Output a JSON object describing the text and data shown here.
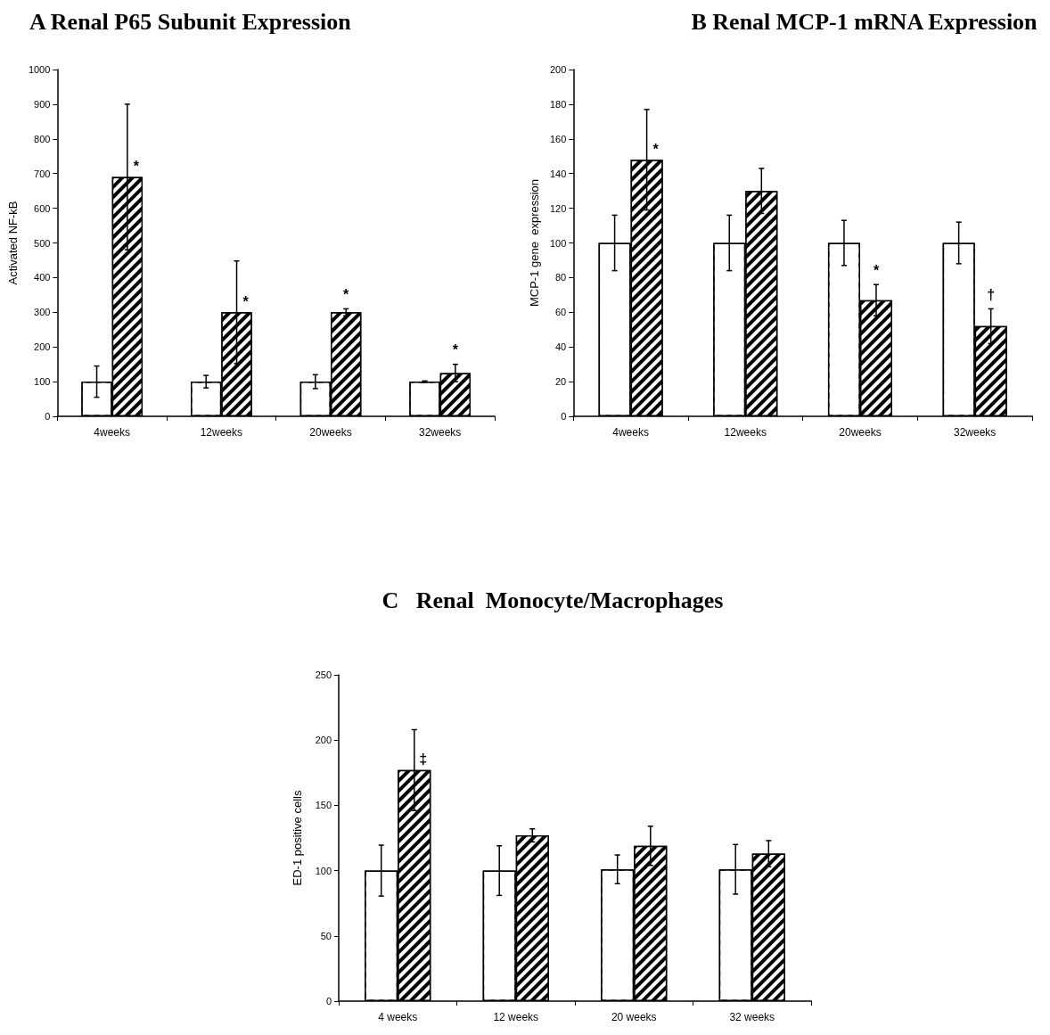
{
  "chart_data": [
    {
      "type": "bar",
      "title": "A Renal P65 Subunit Expression",
      "ylabel": "Activated NF-kB",
      "categories": [
        "4weeks",
        "12weeks",
        "20weeks",
        "32weeks"
      ],
      "series": [
        {
          "color": "#ffffff",
          "values": [
            100,
            100,
            100,
            100
          ],
          "errors": [
            45,
            18,
            20,
            2
          ]
        },
        {
          "color": "#000000",
          "values": [
            690,
            300,
            300,
            125
          ],
          "errors": [
            210,
            148,
            10,
            25
          ],
          "value_labels": [
            "*",
            "*",
            "*",
            "*"
          ]
        }
      ],
      "ylim": [
        0,
        1000
      ],
      "yticks": [
        0,
        100,
        200,
        300,
        400,
        500,
        600,
        700,
        800,
        900,
        1000
      ]
    },
    {
      "type": "bar",
      "title": "B Renal MCP-1 mRNA Expression",
      "ylabel": "MCP-1 gene  expression",
      "categories": [
        "4weeks",
        "12weeks",
        "20weeks",
        "32weeks"
      ],
      "series": [
        {
          "color": "#ffffff",
          "values": [
            100,
            100,
            100,
            100
          ],
          "errors": [
            16,
            16,
            13,
            12
          ]
        },
        {
          "color": "#000000",
          "values": [
            148,
            130,
            67,
            52
          ],
          "errors": [
            29,
            13,
            9,
            10
          ],
          "value_labels": [
            "*",
            null,
            "*",
            "†"
          ]
        }
      ],
      "ylim": [
        0,
        200
      ],
      "yticks": [
        0,
        20,
        40,
        60,
        80,
        100,
        120,
        140,
        160,
        180,
        200
      ]
    },
    {
      "type": "bar",
      "title": "C   Renal  Monocyte/Macrophages",
      "ylabel": "ED-1 positive cells",
      "categories": [
        "4 weeks",
        "12 weeks",
        "20 weeks",
        "32 weeks"
      ],
      "series": [
        {
          "color": "#ffffff",
          "values": [
            100,
            100,
            101,
            101
          ],
          "errors": [
            19.5,
            19,
            11,
            19
          ]
        },
        {
          "color": "#000000",
          "values": [
            177,
            127,
            119,
            113
          ],
          "errors": [
            31,
            5,
            15,
            10
          ],
          "value_labels": [
            "‡",
            null,
            null,
            null
          ]
        }
      ],
      "ylim": [
        0,
        250
      ],
      "yticks": [
        0,
        50,
        100,
        150,
        200,
        250
      ]
    }
  ]
}
